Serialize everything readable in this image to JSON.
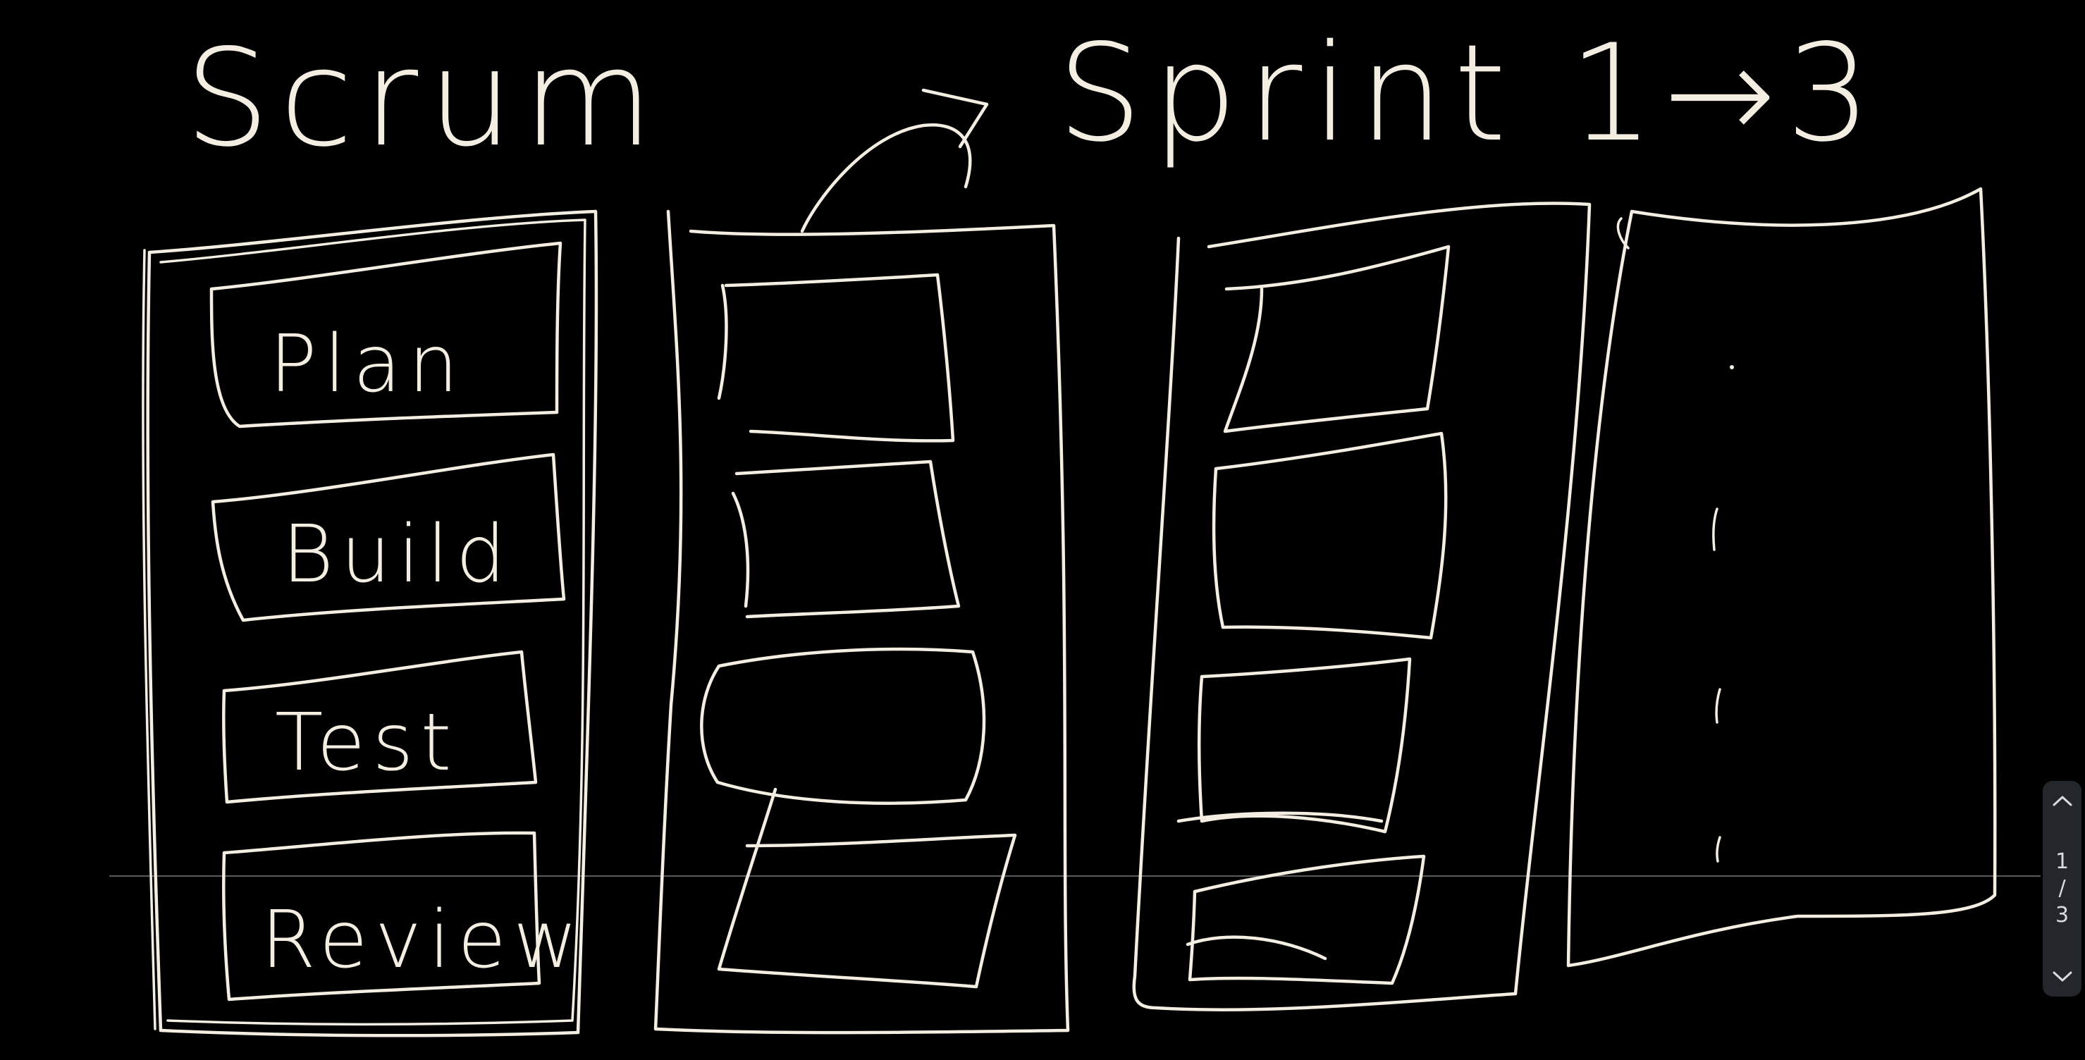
{
  "board": {
    "title": "Scrum",
    "sprint_title": "Sprint 1→3",
    "stages": [
      "Plan",
      "Build",
      "Test",
      "Review"
    ]
  },
  "pager": {
    "current": "1",
    "separator": "/",
    "total": "3",
    "up_icon": "chevron-up-icon",
    "down_icon": "chevron-down-icon"
  },
  "colors": {
    "background": "#000000",
    "ink": "#f3ede2",
    "pager_background": "#23262b"
  }
}
